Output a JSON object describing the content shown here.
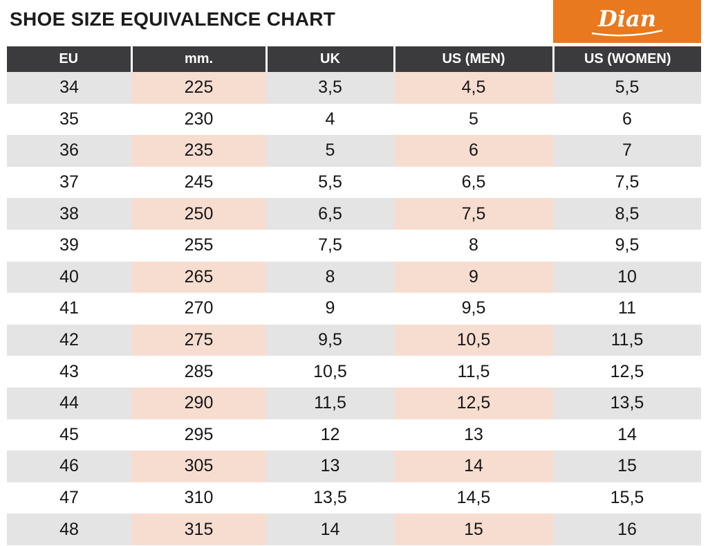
{
  "title": "SHOE SIZE EQUIVALENCE CHART",
  "logo": {
    "brand": "Dian",
    "background": "#e8791e",
    "text_color": "#ffffff"
  },
  "chart_data": {
    "type": "table",
    "title": "SHOE SIZE EQUIVALENCE CHART",
    "columns": [
      "EU",
      "mm.",
      "UK",
      "US (MEN)",
      "US (WOMEN)"
    ],
    "rows": [
      [
        "34",
        "225",
        "3,5",
        "4,5",
        "5,5"
      ],
      [
        "35",
        "230",
        "4",
        "5",
        "6"
      ],
      [
        "36",
        "235",
        "5",
        "6",
        "7"
      ],
      [
        "37",
        "245",
        "5,5",
        "6,5",
        "7,5"
      ],
      [
        "38",
        "250",
        "6,5",
        "7,5",
        "8,5"
      ],
      [
        "39",
        "255",
        "7,5",
        "8",
        "9,5"
      ],
      [
        "40",
        "265",
        "8",
        "9",
        "10"
      ],
      [
        "41",
        "270",
        "9",
        "9,5",
        "11"
      ],
      [
        "42",
        "275",
        "9,5",
        "10,5",
        "11,5"
      ],
      [
        "43",
        "285",
        "10,5",
        "11,5",
        "12,5"
      ],
      [
        "44",
        "290",
        "11,5",
        "12,5",
        "13,5"
      ],
      [
        "45",
        "295",
        "12",
        "13",
        "14"
      ],
      [
        "46",
        "305",
        "13",
        "14",
        "15"
      ],
      [
        "47",
        "310",
        "13,5",
        "14,5",
        "15,5"
      ],
      [
        "48",
        "315",
        "14",
        "15",
        "16"
      ]
    ],
    "layout_hints": {
      "shaded_rows": "every other row starting with the first",
      "warm_columns": [
        "mm.",
        "US (MEN)"
      ],
      "header_bg": "#3b3b3d",
      "row_gray": "#e4e4e4",
      "row_warm": "#f7ddd0",
      "accent_orange": "#e8791e"
    }
  }
}
